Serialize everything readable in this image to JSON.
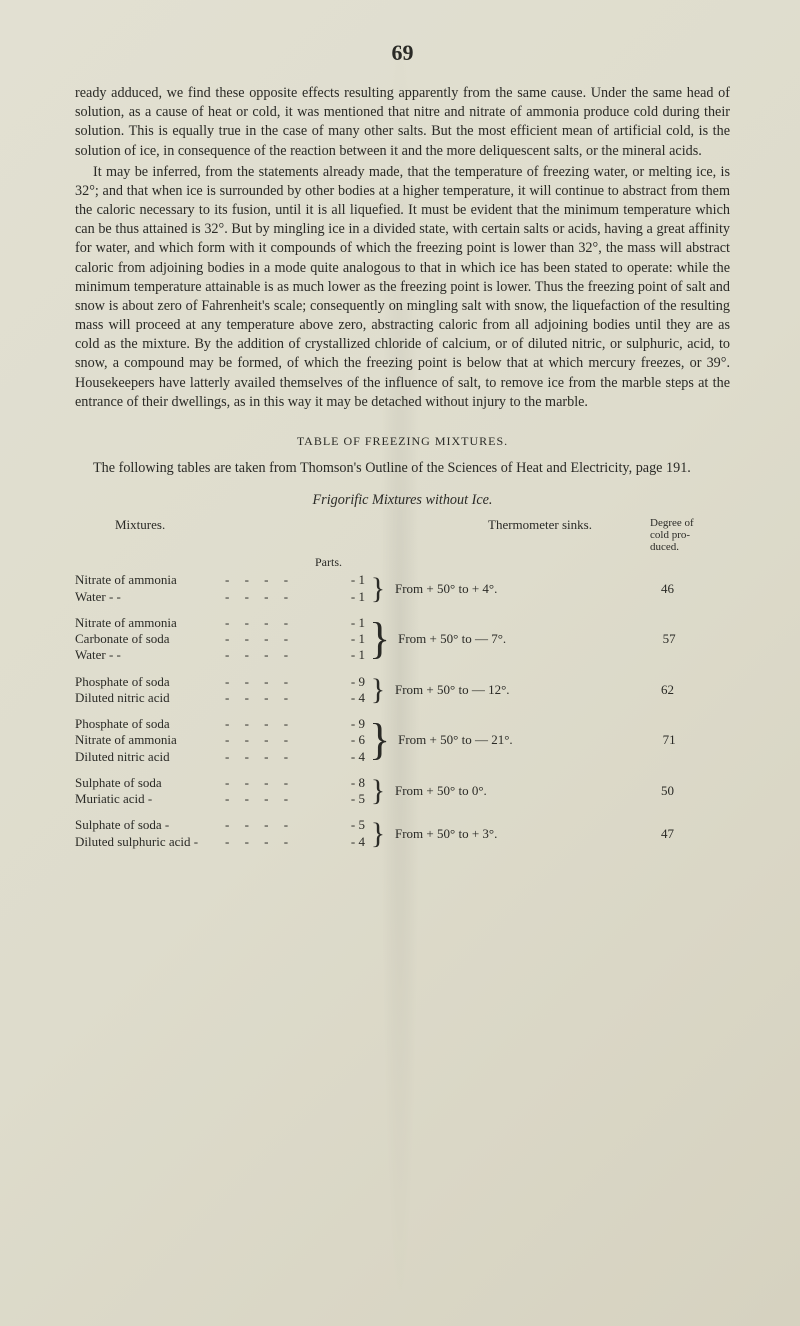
{
  "page_number": "69",
  "paragraphs": {
    "p1": "ready adduced, we find these opposite effects resulting apparently from the same cause. Under the same head of solution, as a cause of heat or cold, it was mentioned that nitre and nitrate of ammonia produce cold during their solution. This is equally true in the case of many other salts. But the most efficient mean of artificial cold, is the solution of ice, in consequence of the reaction between it and the more deliquescent salts, or the mineral acids.",
    "p2": "It may be inferred, from the statements already made, that the temperature of freezing water, or melting ice, is 32°; and that when ice is surrounded by other bodies at a higher temperature, it will continue to abstract from them the caloric necessary to its fusion, until it is all liquefied. It must be evident that the minimum temperature which can be thus attained is 32°. But by mingling ice in a divided state, with certain salts or acids, having a great affinity for water, and which form with it compounds of which the freezing point is lower than 32°, the mass will abstract caloric from adjoining bodies in a mode quite analogous to that in which ice has been stated to operate: while the minimum temperature attainable is as much lower as the freezing point is lower. Thus the freezing point of salt and snow is about zero of Fahrenheit's scale; consequently on mingling salt with snow, the liquefaction of the resulting mass will proceed at any temperature above zero, abstracting caloric from all adjoining bodies until they are as cold as the mixture. By the addition of crystallized chloride of calcium, or of diluted nitric, or sulphuric, acid, to snow, a compound may be formed, of which the freezing point is below that at which mercury freezes, or 39°. Housekeepers have latterly availed themselves of the influence of salt, to remove ice from the marble steps at the entrance of their dwellings, as in this way it may be detached without injury to the marble."
  },
  "section_heading": "TABLE OF FREEZING MIXTURES.",
  "intro": "The following tables are taken from Thomson's Outline of the Sciences of Heat and Electricity, page 191.",
  "sub_heading": "Frigorific Mixtures without Ice.",
  "table": {
    "col_mixtures": "Mixtures.",
    "col_therm": "Thermometer sinks.",
    "col_degree_l1": "Degree of",
    "col_degree_l2": "cold  pro-",
    "col_degree_l3": "duced.",
    "parts_label": "Parts.",
    "rows": [
      {
        "components": [
          {
            "name": "Nitrate of ammonia",
            "parts": "1"
          },
          {
            "name": "Water     -     -",
            "parts": "1"
          }
        ],
        "therm": "From + 50° to + 4°.",
        "degree": "46"
      },
      {
        "components": [
          {
            "name": "Nitrate of ammonia",
            "parts": "1"
          },
          {
            "name": "Carbonate of soda",
            "parts": "1"
          },
          {
            "name": "Water     -     -",
            "parts": "1"
          }
        ],
        "therm": "From + 50° to — 7°.",
        "degree": "57"
      },
      {
        "components": [
          {
            "name": "Phosphate of soda",
            "parts": "9"
          },
          {
            "name": "Diluted nitric acid",
            "parts": "4"
          }
        ],
        "therm": "From + 50° to — 12°.",
        "degree": "62"
      },
      {
        "components": [
          {
            "name": "Phosphate of soda",
            "parts": "9"
          },
          {
            "name": "Nitrate of ammonia",
            "parts": "6"
          },
          {
            "name": "Diluted nitric acid",
            "parts": "4"
          }
        ],
        "therm": "From + 50° to — 21°.",
        "degree": "71"
      },
      {
        "components": [
          {
            "name": "Sulphate of soda",
            "parts": "8"
          },
          {
            "name": "Muriatic acid     -",
            "parts": "5"
          }
        ],
        "therm": "From + 50° to 0°.",
        "degree": "50"
      },
      {
        "components": [
          {
            "name": "Sulphate of soda -",
            "parts": "5"
          },
          {
            "name": "Diluted sulphuric acid -",
            "parts": "4"
          }
        ],
        "therm": "From + 50° to + 3°.",
        "degree": "47"
      }
    ]
  }
}
